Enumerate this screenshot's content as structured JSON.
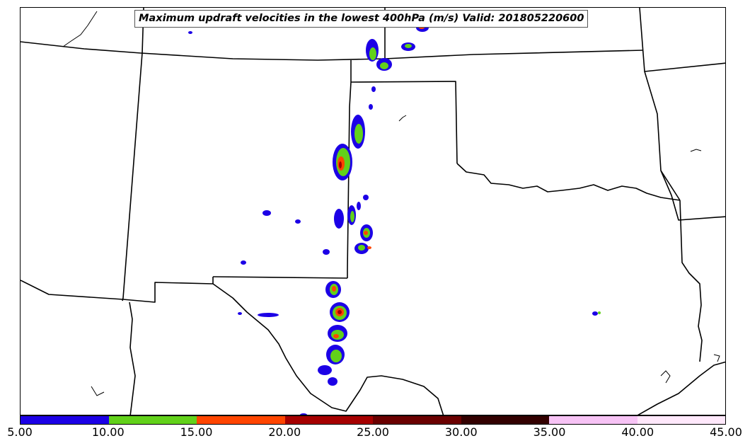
{
  "title": "Maximum updraft velocities in the lowest 400hPa (m/s) Valid: 201805220600",
  "colorbar": {
    "ticks": [
      "5.00",
      "10.00",
      "15.00",
      "20.00",
      "25.00",
      "30.00",
      "35.00",
      "40.00",
      "45.00"
    ],
    "colors": [
      "#1c00e6",
      "#62d11a",
      "#ff4500",
      "#a60000",
      "#6b0000",
      "#330000",
      "#f7c3f5",
      "#ffe8fb"
    ],
    "bins": [
      {
        "range": "5-10",
        "color": "#1c00e6"
      },
      {
        "range": "10-15",
        "color": "#62d11a"
      },
      {
        "range": "15-20",
        "color": "#ff4500"
      },
      {
        "range": "20-25",
        "color": "#a60000"
      },
      {
        "range": "25-30",
        "color": "#6b0000"
      },
      {
        "range": "30-35",
        "color": "#330000"
      },
      {
        "range": "35-40",
        "color": "#f7c3f5"
      },
      {
        "range": "40-45",
        "color": "#ffe8fb"
      }
    ]
  },
  "map": {
    "region": "Southern Great Plains (Texas, Oklahoma, Kansas, New Mexico)",
    "outline_color": "#000000",
    "storm_band": "north-south line of cells along the TX/OK/NM border"
  }
}
